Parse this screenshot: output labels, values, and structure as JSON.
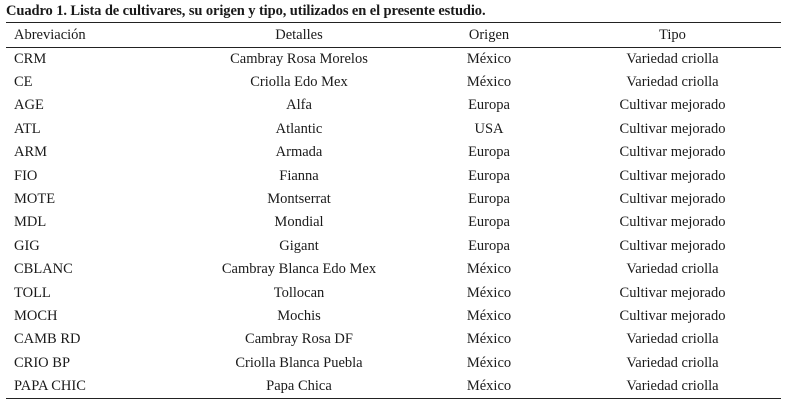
{
  "caption": "Cuadro 1. Lista de cultivares, su origen y tipo, utilizados en el presente estudio.",
  "columns": [
    "Abreviación",
    "Detalles",
    "Origen",
    "Tipo"
  ],
  "rows": [
    [
      "CRM",
      "Cambray Rosa Morelos",
      "México",
      "Variedad criolla"
    ],
    [
      "CE",
      "Criolla Edo Mex",
      "México",
      "Variedad criolla"
    ],
    [
      "AGE",
      "Alfa",
      "Europa",
      "Cultivar mejorado"
    ],
    [
      "ATL",
      "Atlantic",
      "USA",
      "Cultivar mejorado"
    ],
    [
      "ARM",
      "Armada",
      "Europa",
      "Cultivar mejorado"
    ],
    [
      "FIO",
      "Fianna",
      "Europa",
      "Cultivar mejorado"
    ],
    [
      "MOTE",
      "Montserrat",
      "Europa",
      "Cultivar mejorado"
    ],
    [
      "MDL",
      "Mondial",
      "Europa",
      "Cultivar mejorado"
    ],
    [
      "GIG",
      "Gigant",
      "Europa",
      "Cultivar mejorado"
    ],
    [
      "CBLANC",
      "Cambray Blanca Edo Mex",
      "México",
      "Variedad criolla"
    ],
    [
      "TOLL",
      "Tollocan",
      "México",
      "Cultivar mejorado"
    ],
    [
      "MOCH",
      "Mochis",
      "México",
      "Cultivar mejorado"
    ],
    [
      "CAMB RD",
      "Cambray Rosa DF",
      "México",
      "Variedad criolla"
    ],
    [
      "CRIO BP",
      "Criolla Blanca Puebla",
      "México",
      "Variedad criolla"
    ],
    [
      "PAPA CHIC",
      "Papa Chica",
      "México",
      "Variedad criolla"
    ]
  ]
}
